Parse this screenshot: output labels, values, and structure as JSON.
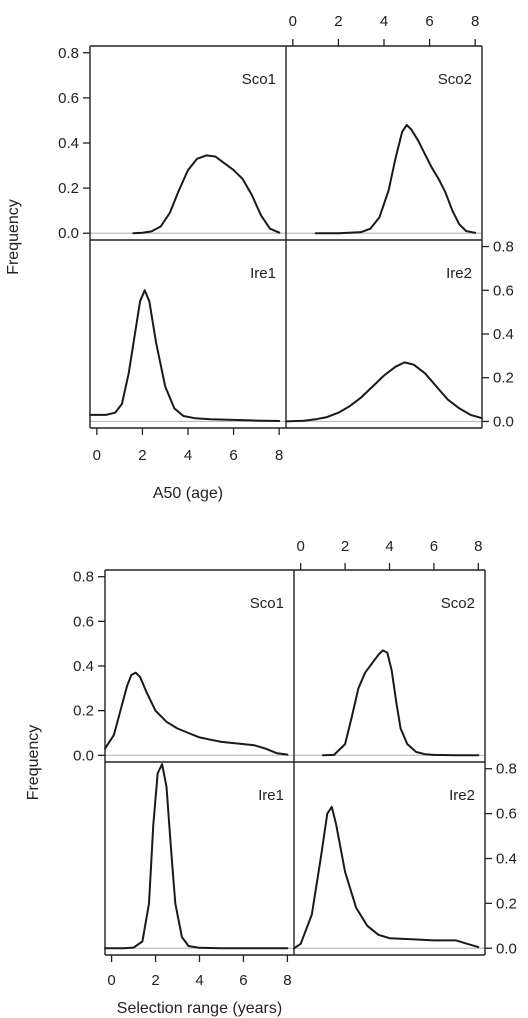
{
  "chart_data": [
    {
      "type": "line",
      "layout": "2x2 lattice",
      "xlabel": "A50 (age)",
      "ylabel": "Frequency",
      "xlim": [
        -0.3,
        8.3
      ],
      "ylim": [
        -0.03,
        0.83
      ],
      "xticks": [
        "0",
        "2",
        "4",
        "6",
        "8"
      ],
      "yticks": [
        "0.0",
        "0.2",
        "0.4",
        "0.6",
        "0.8"
      ],
      "baseline_color": "#bbbbbb",
      "line_color": "#1a1a1a",
      "panels": [
        {
          "label": "Sco1",
          "x": [
            1.6,
            2.0,
            2.4,
            2.8,
            3.2,
            3.6,
            4.0,
            4.4,
            4.8,
            5.2,
            5.6,
            6.0,
            6.4,
            6.8,
            7.2,
            7.6,
            8.0
          ],
          "y": [
            0,
            0.002,
            0.008,
            0.03,
            0.09,
            0.19,
            0.28,
            0.33,
            0.345,
            0.34,
            0.31,
            0.28,
            0.24,
            0.17,
            0.08,
            0.02,
            0.003
          ]
        },
        {
          "label": "Sco2",
          "x": [
            1.0,
            2.0,
            3.0,
            3.4,
            3.8,
            4.2,
            4.5,
            4.8,
            5.0,
            5.2,
            5.5,
            5.8,
            6.1,
            6.4,
            6.7,
            7.0,
            7.3,
            7.6,
            8.0
          ],
          "y": [
            0,
            0,
            0.005,
            0.02,
            0.07,
            0.19,
            0.33,
            0.45,
            0.48,
            0.46,
            0.41,
            0.35,
            0.29,
            0.24,
            0.18,
            0.1,
            0.04,
            0.01,
            0.002
          ]
        },
        {
          "label": "Ire1",
          "x": [
            -0.3,
            0.4,
            0.8,
            1.1,
            1.4,
            1.7,
            1.9,
            2.1,
            2.3,
            2.6,
            3.0,
            3.4,
            3.8,
            4.3,
            5.0,
            6.0,
            7.0,
            8.0
          ],
          "y": [
            0.03,
            0.03,
            0.04,
            0.08,
            0.22,
            0.42,
            0.55,
            0.6,
            0.55,
            0.36,
            0.16,
            0.06,
            0.025,
            0.015,
            0.01,
            0.007,
            0.004,
            0.002
          ]
        },
        {
          "label": "Ire2",
          "x": [
            -0.3,
            0.5,
            1.0,
            1.5,
            2.0,
            2.5,
            3.0,
            3.5,
            4.0,
            4.5,
            4.9,
            5.3,
            5.8,
            6.3,
            6.8,
            7.3,
            7.8,
            8.3
          ],
          "y": [
            0,
            0.003,
            0.01,
            0.02,
            0.04,
            0.07,
            0.11,
            0.16,
            0.21,
            0.25,
            0.27,
            0.26,
            0.22,
            0.16,
            0.1,
            0.06,
            0.03,
            0.015
          ]
        }
      ]
    },
    {
      "type": "line",
      "layout": "2x2 lattice",
      "xlabel": "Selection range (years)",
      "ylabel": "Frequency",
      "xlim": [
        -0.3,
        8.3
      ],
      "ylim": [
        -0.03,
        0.83
      ],
      "xticks": [
        "0",
        "2",
        "4",
        "6",
        "8"
      ],
      "yticks": [
        "0.0",
        "0.2",
        "0.4",
        "0.6",
        "0.8"
      ],
      "baseline_color": "#bbbbbb",
      "line_color": "#1a1a1a",
      "panels": [
        {
          "label": "Sco1",
          "x": [
            -0.3,
            0.1,
            0.4,
            0.7,
            0.9,
            1.1,
            1.3,
            1.6,
            2.0,
            2.5,
            3.0,
            3.5,
            4.0,
            4.5,
            5.0,
            5.5,
            6.0,
            6.5,
            7.0,
            7.5,
            8.0
          ],
          "y": [
            0.03,
            0.09,
            0.2,
            0.31,
            0.36,
            0.37,
            0.35,
            0.28,
            0.2,
            0.15,
            0.12,
            0.1,
            0.08,
            0.07,
            0.06,
            0.055,
            0.05,
            0.045,
            0.03,
            0.01,
            0.003
          ]
        },
        {
          "label": "Sco2",
          "x": [
            1.0,
            1.5,
            2.0,
            2.3,
            2.6,
            2.9,
            3.2,
            3.5,
            3.7,
            3.9,
            4.1,
            4.3,
            4.5,
            4.8,
            5.2,
            5.6,
            6.0,
            7.0,
            8.0
          ],
          "y": [
            0,
            0.002,
            0.05,
            0.17,
            0.3,
            0.37,
            0.41,
            0.45,
            0.47,
            0.46,
            0.38,
            0.24,
            0.12,
            0.05,
            0.015,
            0.005,
            0.002,
            0,
            0
          ]
        },
        {
          "label": "Ire1",
          "x": [
            -0.3,
            0.5,
            1.0,
            1.4,
            1.7,
            1.9,
            2.1,
            2.3,
            2.5,
            2.7,
            2.9,
            3.2,
            3.5,
            4.0,
            5.0,
            6.0,
            8.0
          ],
          "y": [
            0,
            0,
            0.003,
            0.03,
            0.2,
            0.55,
            0.78,
            0.82,
            0.72,
            0.45,
            0.2,
            0.05,
            0.01,
            0.002,
            0,
            0,
            0
          ]
        },
        {
          "label": "Ire2",
          "x": [
            -0.3,
            0.0,
            0.5,
            0.9,
            1.2,
            1.4,
            1.6,
            2.0,
            2.5,
            3.0,
            3.5,
            4.0,
            5.0,
            6.0,
            7.0,
            7.5,
            8.0
          ],
          "y": [
            0,
            0.02,
            0.15,
            0.4,
            0.6,
            0.63,
            0.55,
            0.34,
            0.18,
            0.1,
            0.06,
            0.045,
            0.04,
            0.035,
            0.035,
            0.02,
            0.005
          ]
        }
      ]
    }
  ]
}
